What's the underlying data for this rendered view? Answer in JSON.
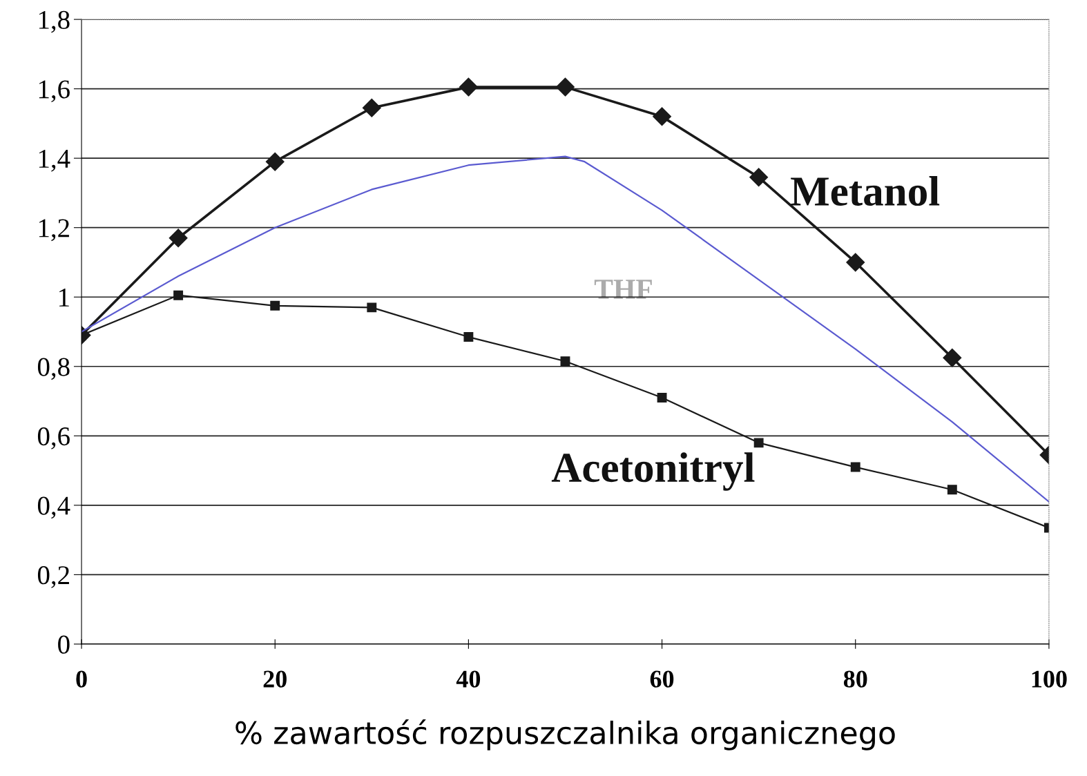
{
  "chart_data": {
    "type": "line",
    "xlabel": "% zawartość rozpuszczalnika organicznego",
    "xlim": [
      0,
      100
    ],
    "xticks": [
      0,
      20,
      40,
      60,
      80,
      100
    ],
    "ylim": [
      0,
      1.8
    ],
    "yticks": [
      {
        "value": 0,
        "label": "0"
      },
      {
        "value": 0.2,
        "label": "0,2"
      },
      {
        "value": 0.4,
        "label": "0,4"
      },
      {
        "value": 0.6,
        "label": "0,6"
      },
      {
        "value": 0.8,
        "label": "0,8"
      },
      {
        "value": 1,
        "label": "1"
      },
      {
        "value": 1.2,
        "label": "1,2"
      },
      {
        "value": 1.4,
        "label": "1,4"
      },
      {
        "value": 1.6,
        "label": "1,6"
      },
      {
        "value": 1.8,
        "label": "1,8"
      }
    ],
    "grid": "y",
    "legend": false,
    "series": [
      {
        "name": "Metanol",
        "color": "#1a1a1a",
        "marker": "diamond",
        "x": [
          0,
          10,
          20,
          30,
          40,
          50,
          60,
          70,
          80,
          90,
          100
        ],
        "values": [
          0.89,
          1.17,
          1.39,
          1.545,
          1.605,
          1.605,
          1.52,
          1.345,
          1.1,
          0.825,
          0.545
        ]
      },
      {
        "name": "Acetonitryl",
        "color": "#1a1a1a",
        "marker": "square",
        "x": [
          0,
          10,
          20,
          30,
          40,
          50,
          60,
          70,
          80,
          90,
          100
        ],
        "values": [
          0.89,
          1.005,
          0.975,
          0.97,
          0.885,
          0.815,
          0.71,
          0.58,
          0.51,
          0.445,
          0.335
        ]
      },
      {
        "name": "THF",
        "color": "#5a5ad0",
        "marker": "none",
        "x": [
          0,
          10,
          20,
          30,
          40,
          50,
          52,
          60,
          70,
          80,
          90,
          100
        ],
        "values": [
          0.9,
          1.06,
          1.2,
          1.31,
          1.38,
          1.405,
          1.39,
          1.25,
          1.05,
          0.85,
          0.64,
          0.41
        ]
      }
    ]
  }
}
